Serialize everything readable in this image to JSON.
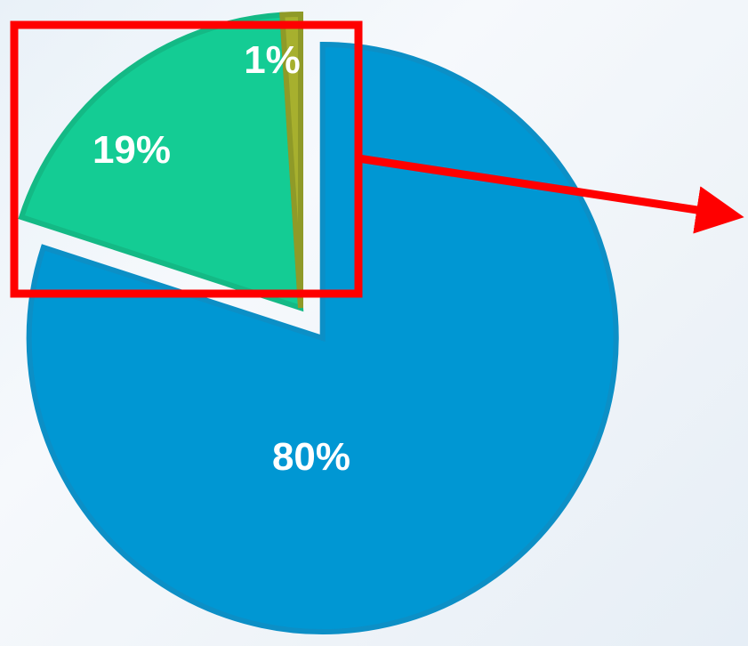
{
  "chart_data": {
    "type": "pie",
    "title": "",
    "slices": [
      {
        "label": "80%",
        "value": 80,
        "color": "#0097d3",
        "stroke": "#0c8fc6",
        "exploded": true
      },
      {
        "label": "19%",
        "value": 19,
        "color": "#14cc94",
        "stroke": "#14b985",
        "exploded": false
      },
      {
        "label": "1%",
        "value": 1,
        "color": "#a7b02e",
        "stroke": "#8f9a28",
        "exploded": false
      }
    ],
    "legend": "none"
  },
  "annotation": {
    "highlight_box_color": "#ff0000",
    "arrow_color": "#ff0000"
  }
}
